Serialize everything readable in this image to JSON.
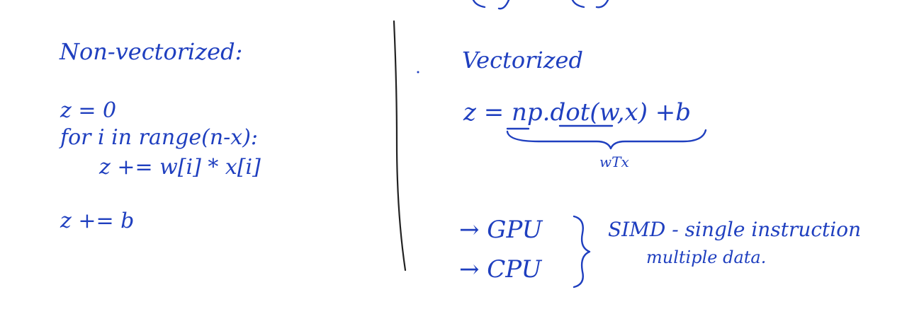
{
  "left": {
    "heading": "Non-vectorized:",
    "lines": [
      "z = 0",
      "for i in range(n-x):",
      "z += w[i] * x[i]",
      "z += b"
    ]
  },
  "right": {
    "heading": "Vectorized",
    "equation": "z = np.dot(w,x) +b",
    "brace_label": "wTx",
    "hardware": [
      "→ GPU",
      "→ CPU"
    ],
    "simd_line1": "SIMD - single instruction",
    "simd_line2": "multiple data."
  }
}
